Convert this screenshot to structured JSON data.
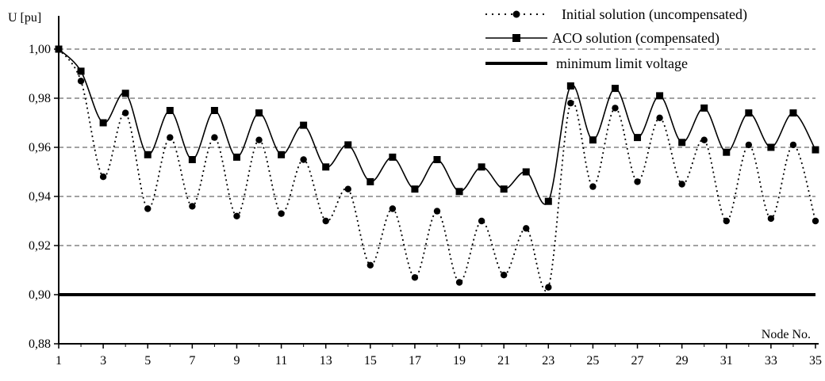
{
  "chart_data": {
    "type": "line",
    "ylabel": "U [pu]",
    "xlabel": "Node No.",
    "ylim": [
      0.88,
      1.0
    ],
    "xlim": [
      1,
      35
    ],
    "x_ticks": [
      "1",
      "3",
      "5",
      "7",
      "9",
      "11",
      "13",
      "15",
      "17",
      "19",
      "21",
      "23",
      "25",
      "27",
      "29",
      "31",
      "33",
      "35"
    ],
    "y_ticks": [
      "0,88",
      "0,90",
      "0,92",
      "0,94",
      "0,96",
      "0,98",
      "1,00"
    ],
    "grid": "horizontal dashed",
    "legend_position": "top-right",
    "x": [
      1,
      2,
      3,
      4,
      5,
      6,
      7,
      8,
      9,
      10,
      11,
      12,
      13,
      14,
      15,
      16,
      17,
      18,
      19,
      20,
      21,
      22,
      23,
      24,
      25,
      26,
      27,
      28,
      29,
      30,
      31,
      32,
      33,
      34,
      35
    ],
    "series": [
      {
        "name": "Initial solution (uncompensated)",
        "style": "dotted line, circle markers",
        "color": "#000000",
        "values": [
          1.0,
          0.987,
          0.948,
          0.974,
          0.935,
          0.964,
          0.936,
          0.964,
          0.932,
          0.963,
          0.933,
          0.955,
          0.93,
          0.943,
          0.912,
          0.935,
          0.907,
          0.934,
          0.905,
          0.93,
          0.908,
          0.927,
          0.903,
          0.978,
          0.944,
          0.976,
          0.946,
          0.972,
          0.945,
          0.963,
          0.93,
          0.961,
          0.931,
          0.961,
          0.93
        ]
      },
      {
        "name": "ACO solution (compensated)",
        "style": "solid line, square markers",
        "color": "#000000",
        "values": [
          1.0,
          0.991,
          0.97,
          0.982,
          0.957,
          0.975,
          0.955,
          0.975,
          0.956,
          0.974,
          0.957,
          0.969,
          0.952,
          0.961,
          0.946,
          0.956,
          0.943,
          0.955,
          0.942,
          0.952,
          0.943,
          0.95,
          0.938,
          0.985,
          0.963,
          0.984,
          0.964,
          0.981,
          0.962,
          0.976,
          0.958,
          0.974,
          0.96,
          0.974,
          0.959
        ]
      },
      {
        "name": "minimum limit voltage",
        "style": "thick solid line",
        "color": "#000000",
        "values": [
          0.9,
          0.9,
          0.9,
          0.9,
          0.9,
          0.9,
          0.9,
          0.9,
          0.9,
          0.9,
          0.9,
          0.9,
          0.9,
          0.9,
          0.9,
          0.9,
          0.9,
          0.9,
          0.9,
          0.9,
          0.9,
          0.9,
          0.9,
          0.9,
          0.9,
          0.9,
          0.9,
          0.9,
          0.9,
          0.9,
          0.9,
          0.9,
          0.9,
          0.9,
          0.9
        ]
      }
    ]
  }
}
